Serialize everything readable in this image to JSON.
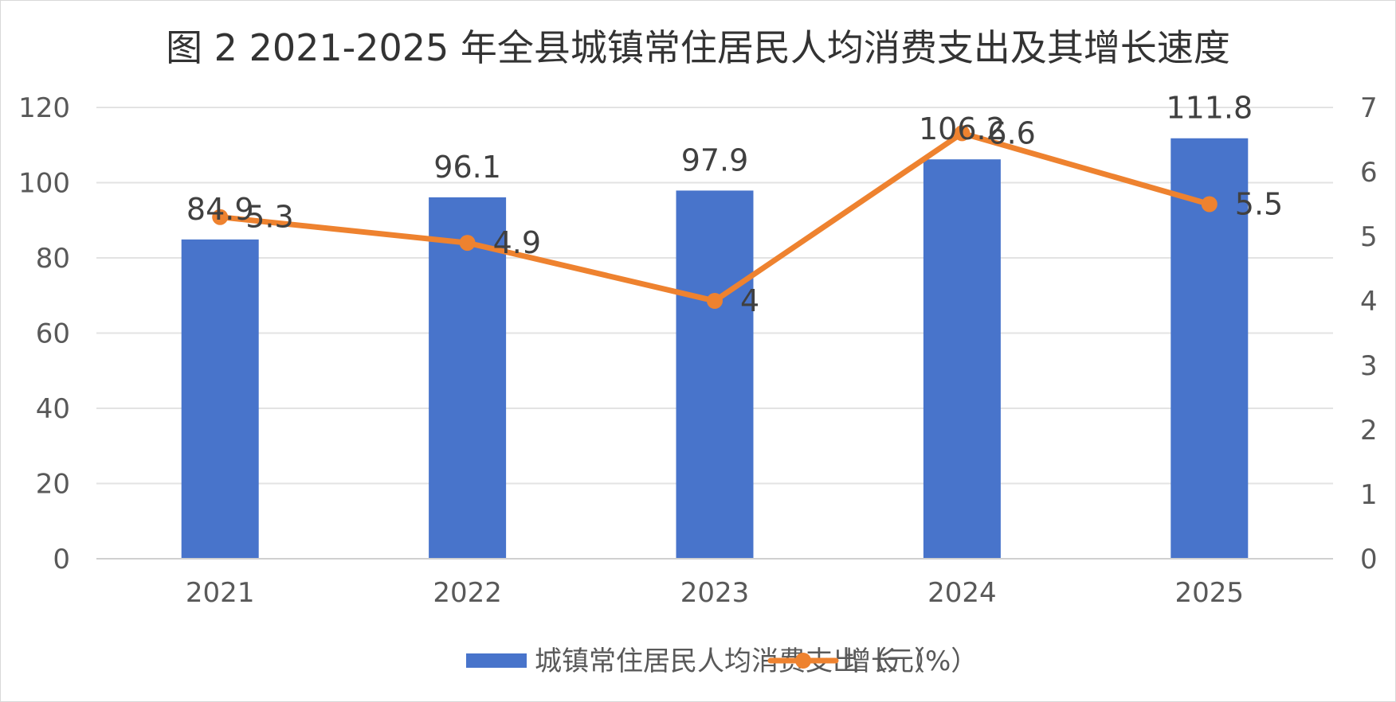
{
  "chart_data": {
    "type": "bar",
    "title": "图 2   2021-2025 年全县城镇常住居民人均消费支出及其增长速度",
    "categories": [
      "2021",
      "2022",
      "2023",
      "2024",
      "2025"
    ],
    "series": [
      {
        "name": "城镇常住居民人均消费支出（元）",
        "type": "bar",
        "axis": "left",
        "color": "#4874CB",
        "values": [
          84.9,
          96.1,
          97.9,
          106.2,
          111.8
        ],
        "labels": [
          "84.9",
          "96.1",
          "97.9",
          "106.2",
          "111.8"
        ]
      },
      {
        "name": "增长（%）",
        "type": "line",
        "axis": "right",
        "color": "#EE822F",
        "values": [
          5.3,
          4.9,
          4.0,
          6.6,
          5.5
        ],
        "labels": [
          "5.3",
          "4.9",
          "4",
          "6.6",
          "5.5"
        ]
      }
    ],
    "y_left": {
      "min": 0,
      "max": 120,
      "ticks": [
        "0",
        "20",
        "40",
        "60",
        "80",
        "100",
        "120"
      ]
    },
    "y_right": {
      "min": 0,
      "max": 7,
      "ticks": [
        "0",
        "1",
        "2",
        "3",
        "4",
        "5",
        "6",
        "7"
      ]
    },
    "grid": true,
    "legend_position": "bottom"
  }
}
